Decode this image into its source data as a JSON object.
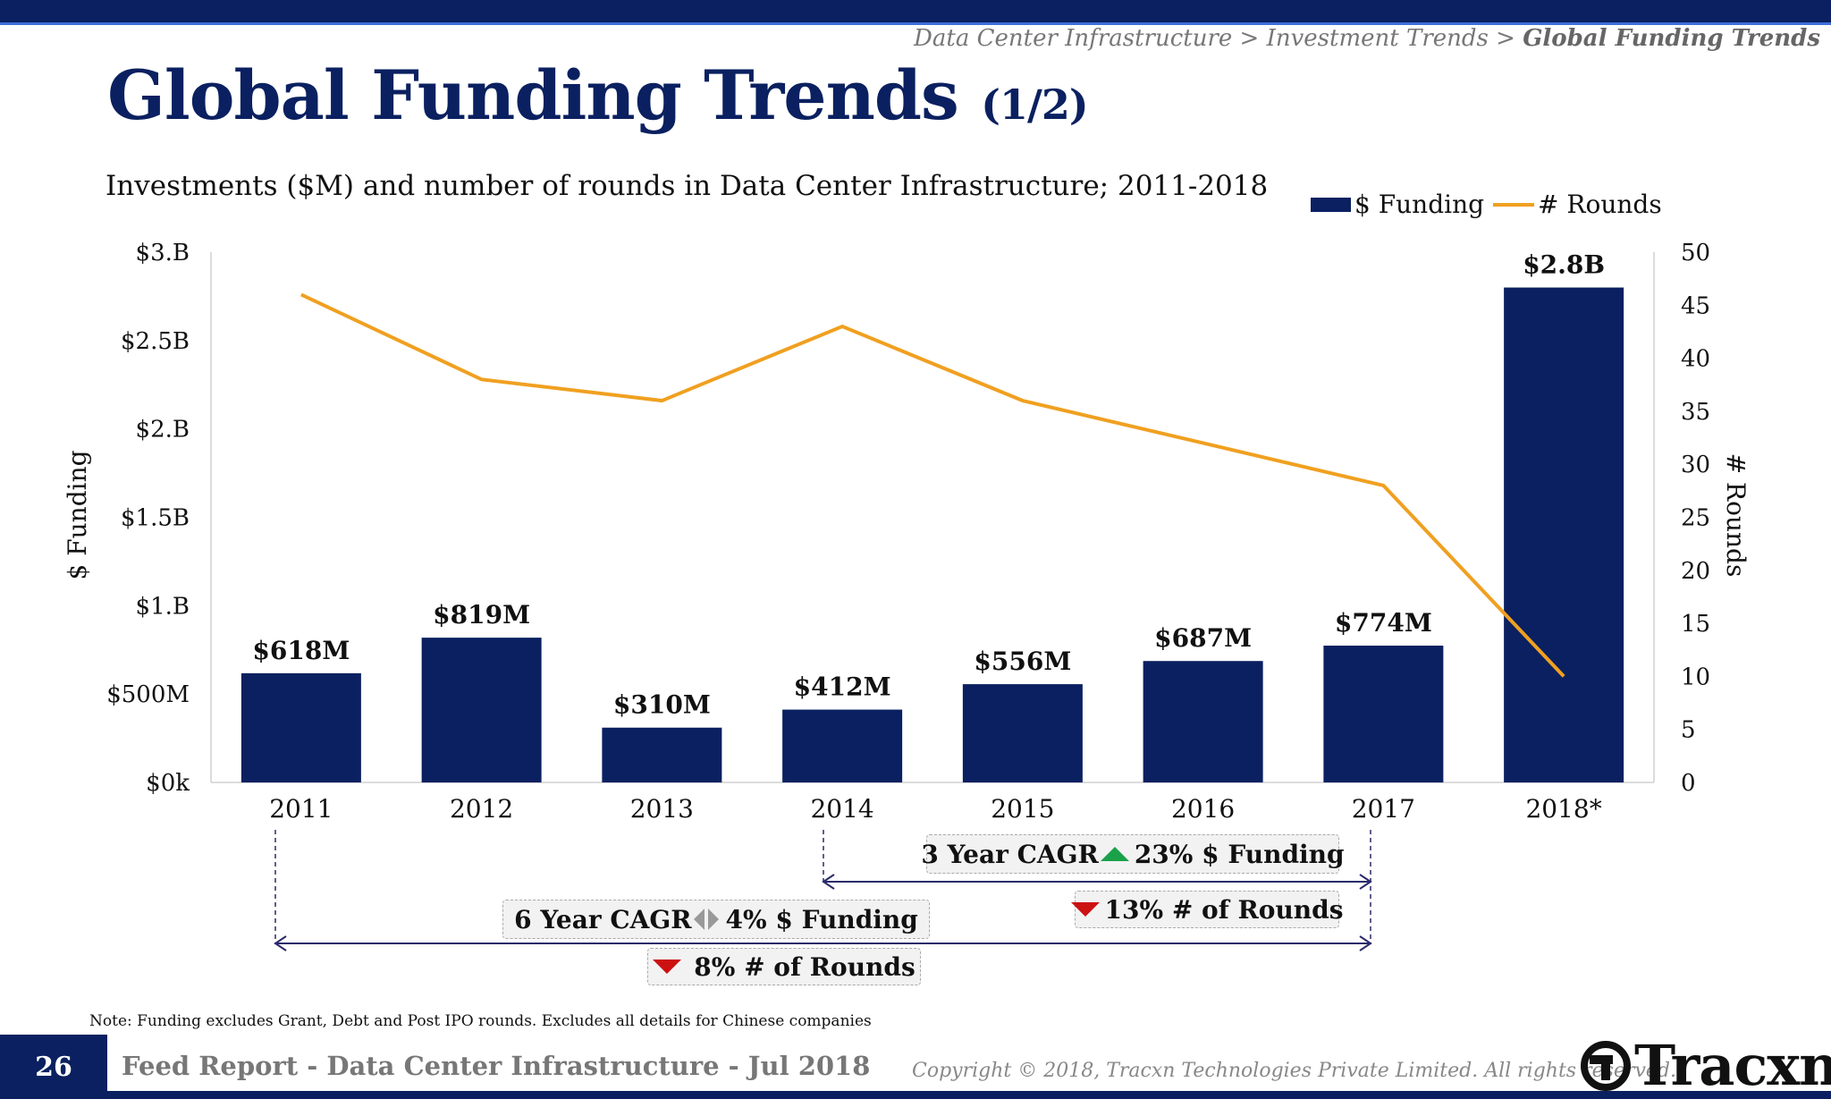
{
  "breadcrumb": {
    "items": [
      "Data Center Infrastructure",
      "Investment Trends"
    ],
    "separator": ">",
    "current": "Global Funding Trends"
  },
  "title": {
    "main": "Global Funding Trends",
    "suffix": "(1/2)"
  },
  "subtitle": "Investments ($M) and number of rounds in Data Center Infrastructure; 2011-2018",
  "legend": {
    "bar": "$ Funding",
    "line": "# Rounds"
  },
  "chart_data": {
    "type": "bar",
    "categories": [
      "2011",
      "2012",
      "2013",
      "2014",
      "2015",
      "2016",
      "2017",
      "2018*"
    ],
    "series": [
      {
        "name": "$ Funding",
        "type": "bar",
        "axis": "left",
        "values": [
          618,
          819,
          310,
          412,
          556,
          687,
          774,
          2800
        ],
        "labels": [
          "$618M",
          "$819M",
          "$310M",
          "$412M",
          "$556M",
          "$687M",
          "$774M",
          "$2.8B"
        ]
      },
      {
        "name": "# Rounds",
        "type": "line",
        "axis": "right",
        "values": [
          46,
          38,
          36,
          43,
          36,
          32,
          28,
          10
        ]
      }
    ],
    "ylabel": "$ Funding",
    "y2label": "# Rounds",
    "ylim": [
      0,
      3000
    ],
    "y2lim": [
      0,
      50
    ],
    "yticks": [
      0,
      500,
      1000,
      1500,
      2000,
      2500,
      3000
    ],
    "yticklabels": [
      "$0k",
      "$500M",
      "$1.B",
      "$1.5B",
      "$2.B",
      "$2.5B",
      "$3.B"
    ],
    "y2ticks": [
      0,
      5,
      10,
      15,
      20,
      25,
      30,
      35,
      40,
      45,
      50
    ],
    "grid": false,
    "legend_position": "top-right",
    "colors": {
      "bar": "#0a2060",
      "line": "#f0a020"
    }
  },
  "cagr": {
    "three_year": {
      "label": "3 Year CAGR",
      "funding": "23% $ Funding",
      "rounds": "13% # of Rounds"
    },
    "six_year": {
      "label": "6 Year CAGR",
      "funding": "4% $ Funding",
      "rounds": "8% # of Rounds"
    }
  },
  "note": "Note: Funding excludes Grant, Debt and Post IPO rounds. Excludes all details for Chinese companies",
  "footer": {
    "page": "26",
    "title": "Feed Report - Data Center Infrastructure - Jul 2018",
    "copyright": "Copyright © 2018, Tracxn Technologies Private Limited. All rights reserved.",
    "logo": "Tracxn"
  }
}
